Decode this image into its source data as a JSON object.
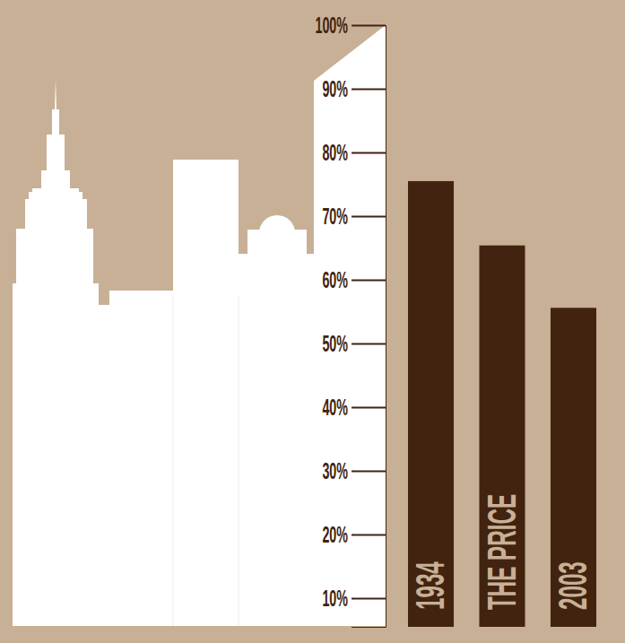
{
  "chart_data": {
    "type": "bar",
    "categories": [
      "1934",
      "THE PRICE",
      "2003"
    ],
    "values": [
      75.5,
      65.4,
      55.6
    ],
    "color": "#42230f",
    "ylim": [
      5.5,
      100
    ],
    "yticks": [
      {
        "value": 10,
        "label": "10%"
      },
      {
        "value": 20,
        "label": "20%"
      },
      {
        "value": 30,
        "label": "30%"
      },
      {
        "value": 40,
        "label": "40%"
      },
      {
        "value": 50,
        "label": "50%"
      },
      {
        "value": 60,
        "label": "60%"
      },
      {
        "value": 70,
        "label": "70%"
      },
      {
        "value": 80,
        "label": "80%"
      },
      {
        "value": 90,
        "label": "90%"
      },
      {
        "value": 100,
        "label": "100%"
      }
    ]
  }
}
